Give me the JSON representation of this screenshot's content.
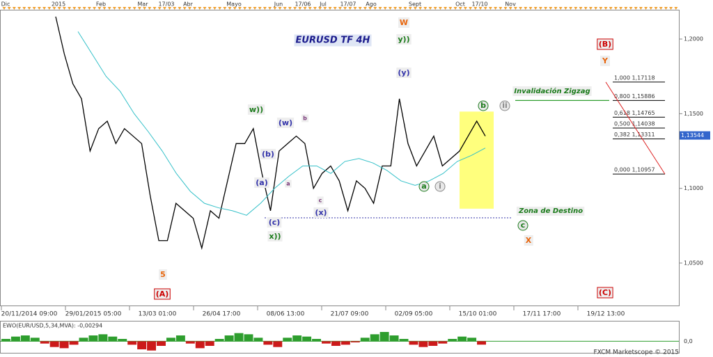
{
  "chart_data": [
    {
      "type": "line",
      "title": "EURUSD TF 4H",
      "top_labels": [
        "Dic",
        "2015",
        "Feb",
        "Mar",
        "17/03",
        "Abr",
        "Mayo",
        "Jun",
        "17/06",
        "Jul",
        "17/07",
        "Ago",
        "Sept",
        "Oct",
        "17/10",
        "Nov"
      ],
      "bottom_labels": [
        "20/11/2014 09:00",
        "29/01/2015 05:00",
        "13/03 01:00",
        "26/04 17:00",
        "08/06 13:00",
        "21/07 09:00",
        "02/09 05:00",
        "15/10 01:00",
        "17/11 17:00",
        "19/12 13:00"
      ],
      "series": [
        {
          "color": "#000000",
          "values": [
            1.215,
            1.19,
            1.17,
            1.16,
            1.125,
            1.14,
            1.145,
            1.13,
            1.14,
            1.135,
            1.13,
            1.095,
            1.065,
            1.065,
            1.09,
            1.085,
            1.08,
            1.06,
            1.085,
            1.08,
            1.105,
            1.13,
            1.13,
            1.14,
            1.11,
            1.085,
            1.125,
            1.13,
            1.135,
            1.13,
            1.1,
            1.11,
            1.115,
            1.105,
            1.085,
            1.105,
            1.1,
            1.09,
            1.115,
            1.115,
            1.16,
            1.13,
            1.115,
            1.125,
            1.135,
            1.115,
            1.12,
            1.125,
            1.135,
            1.145,
            1.135
          ]
        },
        {
          "color": "#33c0c8",
          "values": [
            1.205,
            1.19,
            1.175,
            1.165,
            1.15,
            1.138,
            1.125,
            1.11,
            1.098,
            1.09,
            1.087,
            1.085,
            1.082,
            1.09,
            1.1,
            1.108,
            1.115,
            1.115,
            1.11,
            1.118,
            1.12,
            1.117,
            1.112,
            1.105,
            1.102,
            1.105,
            1.11,
            1.118,
            1.122,
            1.127
          ]
        }
      ],
      "ylim": [
        1.0211,
        1.2196
      ],
      "yticks": [
        {
          "value": 1.05,
          "label": "1,0500"
        },
        {
          "value": 1.1,
          "label": "1,1000"
        },
        {
          "value": 1.15,
          "label": "1,1500"
        },
        {
          "value": 1.2,
          "label": "1,2000"
        }
      ],
      "current_price": {
        "value": 1.13544,
        "label": "1,13544"
      },
      "fib_levels": [
        {
          "value": 1.17118,
          "label": "1,000 1,17118"
        },
        {
          "value": 1.15886,
          "label": "0,800 1,15886"
        },
        {
          "value": 1.14765,
          "label": "0,618 1,14765"
        },
        {
          "value": 1.14038,
          "label": "0,500 1,14038"
        },
        {
          "value": 1.13311,
          "label": "0,382 1,13311"
        },
        {
          "value": 1.10957,
          "label": "0,000 1,10957"
        }
      ],
      "support_line": 1.0803,
      "target_zone": [
        1.0864,
        1.1514
      ],
      "annotations": [
        {
          "text": "EURUSD TF 4H",
          "color": "#1a1a8c"
        },
        {
          "text": "W",
          "color": "#e8650c"
        },
        {
          "text": "y))",
          "color": "#1a7a1a"
        },
        {
          "text": "(y)",
          "color": "#3333aa"
        },
        {
          "text": "(B)",
          "color": "#cc0000"
        },
        {
          "text": "Y",
          "color": "#e8650c"
        },
        {
          "text": "w))",
          "color": "#1a7a1a"
        },
        {
          "text": "(w)",
          "color": "#3333aa"
        },
        {
          "text": "b",
          "color": "#7a3a7a"
        },
        {
          "text": "(b)",
          "color": "#3333aa"
        },
        {
          "text": "(a)",
          "color": "#3333aa"
        },
        {
          "text": "a",
          "color": "#7a3a7a"
        },
        {
          "text": "c",
          "color": "#7a3a7a"
        },
        {
          "text": "(x)",
          "color": "#3333aa"
        },
        {
          "text": "(c)",
          "color": "#3333aa"
        },
        {
          "text": "x))",
          "color": "#1a7a1a"
        },
        {
          "text": "5",
          "color": "#e8650c"
        },
        {
          "text": "(A)",
          "color": "#cc0000"
        },
        {
          "text": "b",
          "color": "#1a7a1a",
          "shape": "circle"
        },
        {
          "text": "ii",
          "color": "#888888",
          "shape": "circle"
        },
        {
          "text": "a",
          "color": "#1a7a1a",
          "shape": "circle"
        },
        {
          "text": "i",
          "color": "#888888",
          "shape": "circle"
        },
        {
          "text": "Invalidación Zigzag",
          "color": "#1a7a1a"
        },
        {
          "text": "Zona de Destino",
          "color": "#1a7a1a"
        },
        {
          "text": "c",
          "color": "#1a7a1a",
          "shape": "circle"
        },
        {
          "text": "X",
          "color": "#e8650c"
        },
        {
          "text": "(C)",
          "color": "#cc0000"
        }
      ]
    },
    {
      "type": "bar",
      "title": "EWO(EUR/USD,5,34,MVA): -0,00294",
      "values": [
        0.002,
        0.004,
        0.005,
        0.003,
        -0.002,
        -0.005,
        -0.006,
        -0.003,
        0.003,
        0.005,
        0.006,
        0.004,
        0.002,
        -0.003,
        -0.007,
        -0.008,
        -0.004,
        0.003,
        0.005,
        -0.002,
        -0.006,
        -0.004,
        0.002,
        0.005,
        0.007,
        0.006,
        0.003,
        -0.003,
        -0.005,
        0.003,
        0.005,
        0.004,
        0.002,
        -0.002,
        -0.004,
        -0.003,
        -0.001,
        0.003,
        0.006,
        0.008,
        0.005,
        0.002,
        -0.003,
        -0.005,
        -0.004,
        -0.002,
        0.002,
        0.004,
        0.003,
        -0.00294
      ],
      "positive_color": "#2e9e2e",
      "negative_color": "#cc1a1a",
      "ylim": [
        -0.01,
        0.017
      ],
      "yticks": [
        {
          "value": 0,
          "label": "0,0"
        }
      ]
    }
  ],
  "footer": "FXCM Marketscope © 2015"
}
